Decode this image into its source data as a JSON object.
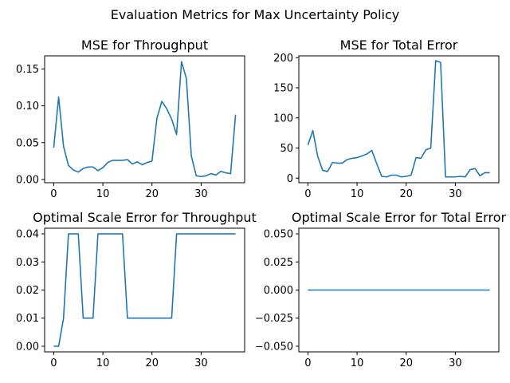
{
  "figure": {
    "suptitle": "Evaluation Metrics for Max Uncertainty Policy",
    "line_color": "#1f77b4"
  },
  "chart_data": [
    {
      "type": "line",
      "title": "MSE for Throughput",
      "xlabel": "",
      "ylabel": "",
      "xlim": [
        -1.85,
        38.85
      ],
      "ylim": [
        -0.0044,
        0.1678
      ],
      "xticks": [
        0,
        10,
        20,
        30
      ],
      "xtick_labels": [
        "0",
        "10",
        "20",
        "30"
      ],
      "yticks": [
        0.0,
        0.05,
        0.1,
        0.15
      ],
      "ytick_labels": [
        "0.00",
        "0.05",
        "0.10",
        "0.15"
      ],
      "series": [
        {
          "name": "MSE",
          "x": [
            0,
            1,
            2,
            3,
            4,
            5,
            6,
            7,
            8,
            9,
            10,
            11,
            12,
            13,
            14,
            15,
            16,
            17,
            18,
            19,
            20,
            21,
            22,
            23,
            24,
            25,
            26,
            27,
            28,
            29,
            30,
            31,
            32,
            33,
            34,
            35,
            36,
            37
          ],
          "y": [
            0.043,
            0.112,
            0.045,
            0.019,
            0.013,
            0.01,
            0.015,
            0.017,
            0.017,
            0.012,
            0.016,
            0.023,
            0.026,
            0.026,
            0.026,
            0.027,
            0.021,
            0.024,
            0.02,
            0.023,
            0.025,
            0.083,
            0.106,
            0.096,
            0.082,
            0.061,
            0.16,
            0.137,
            0.032,
            0.005,
            0.004,
            0.005,
            0.008,
            0.006,
            0.011,
            0.009,
            0.008,
            0.088
          ]
        }
      ]
    },
    {
      "type": "line",
      "title": "MSE for Total Error",
      "xlabel": "",
      "ylabel": "",
      "xlim": [
        -1.85,
        38.85
      ],
      "ylim": [
        -7.6,
        203
      ],
      "xticks": [
        0,
        10,
        20,
        30
      ],
      "xtick_labels": [
        "0",
        "10",
        "20",
        "30"
      ],
      "yticks": [
        0,
        50,
        100,
        150,
        200
      ],
      "ytick_labels": [
        "0",
        "50",
        "100",
        "150",
        "200"
      ],
      "series": [
        {
          "name": "MSE",
          "x": [
            0,
            1,
            2,
            3,
            4,
            5,
            6,
            7,
            8,
            9,
            10,
            11,
            12,
            13,
            14,
            15,
            16,
            17,
            18,
            19,
            20,
            21,
            22,
            23,
            24,
            25,
            26,
            27,
            28,
            29,
            30,
            31,
            32,
            33,
            34,
            35,
            36,
            37
          ],
          "y": [
            55,
            79,
            36,
            13,
            11,
            26,
            25,
            25,
            31,
            33,
            34,
            37,
            40,
            46,
            24,
            3,
            2,
            5,
            5,
            2,
            3,
            5,
            34,
            33,
            47,
            50,
            195,
            192,
            2,
            2,
            2,
            3,
            2,
            14,
            16,
            4,
            9,
            9
          ]
        }
      ]
    },
    {
      "type": "line",
      "title": "Optimal Scale Error for Throughput",
      "xlabel": "",
      "ylabel": "",
      "xlim": [
        -1.85,
        38.85
      ],
      "ylim": [
        -0.002,
        0.042
      ],
      "xticks": [
        0,
        10,
        20,
        30
      ],
      "xtick_labels": [
        "0",
        "10",
        "20",
        "30"
      ],
      "yticks": [
        0.0,
        0.01,
        0.02,
        0.03,
        0.04
      ],
      "ytick_labels": [
        "0.00",
        "0.01",
        "0.02",
        "0.03",
        "0.04"
      ],
      "series": [
        {
          "name": "Optimal Scale Error",
          "x": [
            0,
            1,
            2,
            3,
            4,
            5,
            6,
            7,
            8,
            9,
            10,
            11,
            12,
            13,
            14,
            15,
            16,
            17,
            18,
            19,
            20,
            21,
            22,
            23,
            24,
            25,
            26,
            27,
            28,
            29,
            30,
            31,
            32,
            33,
            34,
            35,
            36,
            37
          ],
          "y": [
            0,
            0,
            0.01,
            0.04,
            0.04,
            0.04,
            0.01,
            0.01,
            0.01,
            0.04,
            0.04,
            0.04,
            0.04,
            0.04,
            0.04,
            0.01,
            0.01,
            0.01,
            0.01,
            0.01,
            0.01,
            0.01,
            0.01,
            0.01,
            0.01,
            0.04,
            0.04,
            0.04,
            0.04,
            0.04,
            0.04,
            0.04,
            0.04,
            0.04,
            0.04,
            0.04,
            0.04,
            0.04
          ]
        }
      ]
    },
    {
      "type": "line",
      "title": "Optimal Scale Error for Total Error",
      "xlabel": "",
      "ylabel": "",
      "xlim": [
        -1.85,
        38.85
      ],
      "ylim": [
        -0.055,
        0.055
      ],
      "xticks": [
        0,
        10,
        20,
        30
      ],
      "xtick_labels": [
        "0",
        "10",
        "20",
        "30"
      ],
      "yticks": [
        -0.05,
        -0.025,
        0.0,
        0.025,
        0.05
      ],
      "ytick_labels": [
        "−0.050",
        "−0.025",
        "0.000",
        "0.025",
        "0.050"
      ],
      "series": [
        {
          "name": "Optimal Scale Error",
          "x": [
            0,
            1,
            2,
            3,
            4,
            5,
            6,
            7,
            8,
            9,
            10,
            11,
            12,
            13,
            14,
            15,
            16,
            17,
            18,
            19,
            20,
            21,
            22,
            23,
            24,
            25,
            26,
            27,
            28,
            29,
            30,
            31,
            32,
            33,
            34,
            35,
            36,
            37
          ],
          "y": [
            0,
            0,
            0,
            0,
            0,
            0,
            0,
            0,
            0,
            0,
            0,
            0,
            0,
            0,
            0,
            0,
            0,
            0,
            0,
            0,
            0,
            0,
            0,
            0,
            0,
            0,
            0,
            0,
            0,
            0,
            0,
            0,
            0,
            0,
            0,
            0,
            0,
            0
          ]
        }
      ]
    }
  ]
}
